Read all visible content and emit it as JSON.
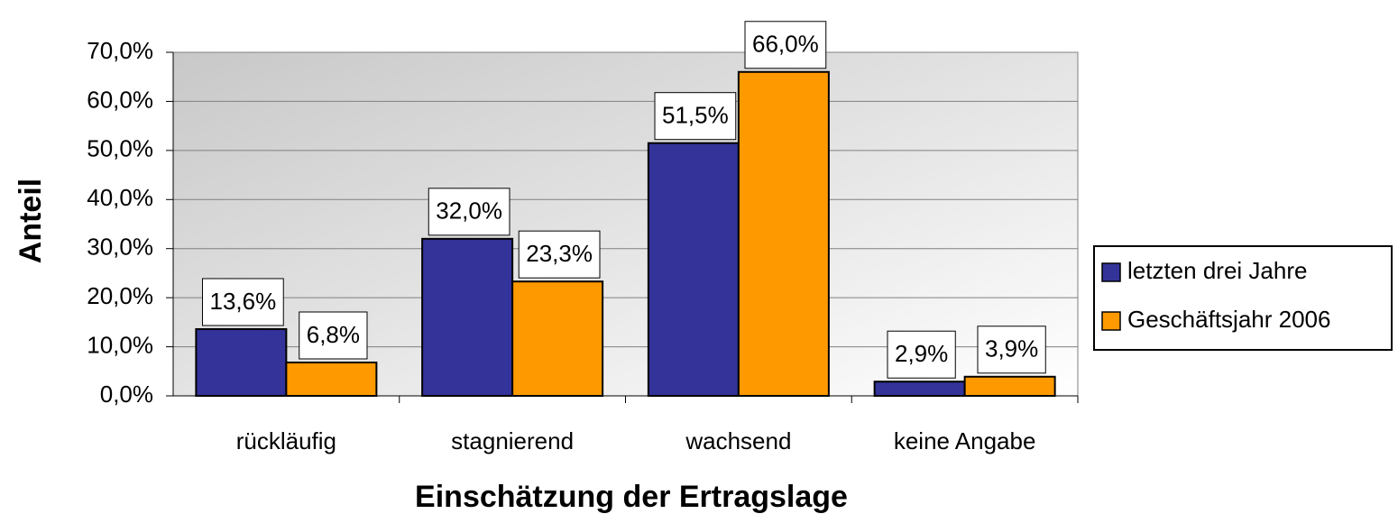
{
  "chart_data": {
    "type": "bar",
    "x_label": "Einschätzung der Ertragslage",
    "y_label": "Anteil",
    "categories": [
      "rückläufig",
      "stagnierend",
      "wachsend",
      "keine Angabe"
    ],
    "series": [
      {
        "name": "letzten drei Jahre",
        "color": "#333399",
        "values": [
          13.6,
          32.0,
          51.5,
          2.9
        ],
        "value_labels": [
          "13,6%",
          "32,0%",
          "51,5%",
          "2,9%"
        ]
      },
      {
        "name": "Geschäftsjahr 2006",
        "color": "#ff9900",
        "values": [
          6.8,
          23.3,
          66.0,
          3.9
        ],
        "value_labels": [
          "6,8%",
          "23,3%",
          "66,0%",
          "3,9%"
        ]
      }
    ],
    "ylim": [
      0,
      70
    ],
    "yticks": [
      {
        "value": 0,
        "label": "0,0%"
      },
      {
        "value": 10,
        "label": "10,0%"
      },
      {
        "value": 20,
        "label": "20,0%"
      },
      {
        "value": 30,
        "label": "30,0%"
      },
      {
        "value": 40,
        "label": "40,0%"
      },
      {
        "value": 50,
        "label": "50,0%"
      },
      {
        "value": 60,
        "label": "60,0%"
      },
      {
        "value": 70,
        "label": "70,0%"
      }
    ],
    "grid": true,
    "legend": "right"
  }
}
